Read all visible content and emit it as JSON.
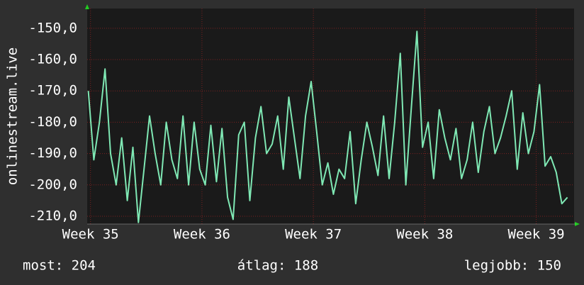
{
  "chart_data": {
    "type": "line",
    "y_label": "onlinestream.live",
    "x": [
      34.98,
      35.03,
      35.08,
      35.13,
      35.18,
      35.23,
      35.28,
      35.33,
      35.38,
      35.43,
      35.48,
      35.53,
      35.58,
      35.63,
      35.68,
      35.73,
      35.78,
      35.83,
      35.88,
      35.93,
      35.98,
      36.03,
      36.08,
      36.13,
      36.18,
      36.23,
      36.28,
      36.33,
      36.38,
      36.43,
      36.48,
      36.53,
      36.58,
      36.63,
      36.68,
      36.73,
      36.78,
      36.83,
      36.88,
      36.93,
      36.98,
      37.03,
      37.08,
      37.13,
      37.18,
      37.23,
      37.28,
      37.33,
      37.38,
      37.43,
      37.48,
      37.53,
      37.58,
      37.63,
      37.68,
      37.73,
      37.78,
      37.83,
      37.88,
      37.93,
      37.98,
      38.03,
      38.08,
      38.13,
      38.18,
      38.23,
      38.28,
      38.33,
      38.38,
      38.43,
      38.48,
      38.53,
      38.58,
      38.63,
      38.68,
      38.73,
      38.78,
      38.83,
      38.88,
      38.93,
      38.98,
      39.03,
      39.08,
      39.13,
      39.18,
      39.23,
      39.28
    ],
    "series": [
      {
        "color": "#7fe8b4",
        "values": [
          -170,
          -192,
          -180,
          -163,
          -190,
          -200,
          -185,
          -205,
          -188,
          -212,
          -195,
          -178,
          -190,
          -200,
          -180,
          -192,
          -198,
          -178,
          -200,
          -180,
          -195,
          -200,
          -181,
          -199,
          -182,
          -204,
          -211,
          -184,
          -180,
          -205,
          -185,
          -175,
          -190,
          -187,
          -178,
          -195,
          -172,
          -185,
          -198,
          -178,
          -167,
          -183,
          -200,
          -193,
          -203,
          -195,
          -198,
          -183,
          -206,
          -192,
          -180,
          -188,
          -197,
          -178,
          -198,
          -180,
          -158,
          -200,
          -175,
          -151,
          -188,
          -180,
          -198,
          -176,
          -185,
          -192,
          -182,
          -198,
          -192,
          -180,
          -196,
          -183,
          -175,
          -190,
          -185,
          -178,
          -170,
          -195,
          -177,
          -190,
          -183,
          -168,
          -194,
          -191,
          -196,
          -206,
          -204
        ]
      }
    ],
    "xlim": [
      34.97,
      39.34
    ],
    "ylim": [
      -212.5,
      -143.7
    ],
    "xticks": [
      {
        "value": 35,
        "label": "Week 35"
      },
      {
        "value": 36,
        "label": "Week 36"
      },
      {
        "value": 37,
        "label": "Week 37"
      },
      {
        "value": 38,
        "label": "Week 38"
      },
      {
        "value": 39,
        "label": "Week 39"
      }
    ],
    "yticks": [
      {
        "value": -150,
        "label": "-150,0"
      },
      {
        "value": -160,
        "label": "-160,0"
      },
      {
        "value": -170,
        "label": "-170,0"
      },
      {
        "value": -180,
        "label": "-180,0"
      },
      {
        "value": -190,
        "label": "-190,0"
      },
      {
        "value": -200,
        "label": "-200,0"
      },
      {
        "value": -210,
        "label": "-210,0"
      }
    ],
    "grid": true,
    "stats": [
      "most: 204",
      "átlag: 188",
      "legjobb: 150"
    ]
  }
}
